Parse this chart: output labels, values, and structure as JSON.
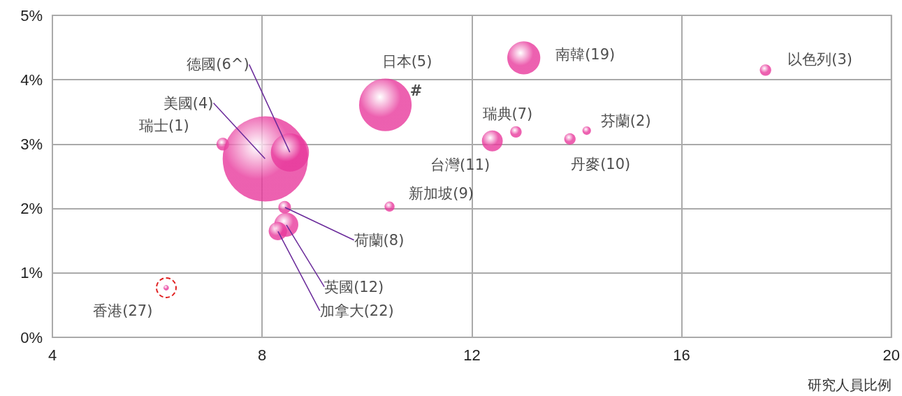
{
  "chart_data": {
    "type": "bubble",
    "xlabel": "研究人員比例",
    "x": [
      7.25,
      8.06,
      8.53,
      10.35,
      12.99,
      17.6,
      12.84,
      14.19,
      12.39,
      13.87,
      10.43,
      8.43,
      8.46,
      8.3,
      6.17
    ],
    "series": [
      {
        "color": "#e8399c",
        "values": [
          3.0,
          2.77,
          2.87,
          3.61,
          4.34,
          4.15,
          3.19,
          3.21,
          3.05,
          3.08,
          2.03,
          2.02,
          1.75,
          1.65,
          0.77
        ],
        "sizes": [
          0.022,
          1,
          0.2,
          0.38,
          0.15,
          0.018,
          0.018,
          0.01,
          0.06,
          0.018,
          0.014,
          0.022,
          0.08,
          0.047,
          0.004
        ]
      }
    ],
    "xlim": [
      4,
      20
    ],
    "xticks": [
      4,
      8,
      12,
      16,
      20
    ],
    "ylim": [
      0,
      5
    ],
    "yticks": [
      {
        "value": 0,
        "label": "0%"
      },
      {
        "value": 1,
        "label": "1%"
      },
      {
        "value": 2,
        "label": "2%"
      },
      {
        "value": 3,
        "label": "3%"
      },
      {
        "value": 4,
        "label": "4%"
      },
      {
        "value": 5,
        "label": "5%"
      }
    ],
    "grid": true,
    "annotations": [
      {
        "text": "瑞士(1)",
        "x": 7.25,
        "y": 3.0
      },
      {
        "text": "美國(4)",
        "x": 8.06,
        "y": 2.77
      },
      {
        "text": "德國(6^)",
        "x": 8.53,
        "y": 2.87
      },
      {
        "text": "日本(5)",
        "x": 10.35,
        "y": 3.61
      },
      {
        "text": "#",
        "x": 10.35,
        "y": 3.61
      },
      {
        "text": "南韓(19)",
        "x": 12.99,
        "y": 4.34
      },
      {
        "text": "以色列(3)",
        "x": 17.6,
        "y": 4.15
      },
      {
        "text": "瑞典(7)",
        "x": 12.84,
        "y": 3.19
      },
      {
        "text": "芬蘭(2)",
        "x": 14.19,
        "y": 3.21
      },
      {
        "text": "台灣(11)",
        "x": 12.39,
        "y": 3.05
      },
      {
        "text": "丹麥(10)",
        "x": 13.87,
        "y": 3.08
      },
      {
        "text": "新加坡(9)",
        "x": 10.43,
        "y": 2.03
      },
      {
        "text": "荷蘭(8)",
        "x": 8.43,
        "y": 2.02
      },
      {
        "text": "英國(12)",
        "x": 8.46,
        "y": 1.75
      },
      {
        "text": "加拿大(22)",
        "x": 8.3,
        "y": 1.65
      },
      {
        "text": "香港(27)",
        "x": 6.17,
        "y": 0.77
      }
    ]
  }
}
